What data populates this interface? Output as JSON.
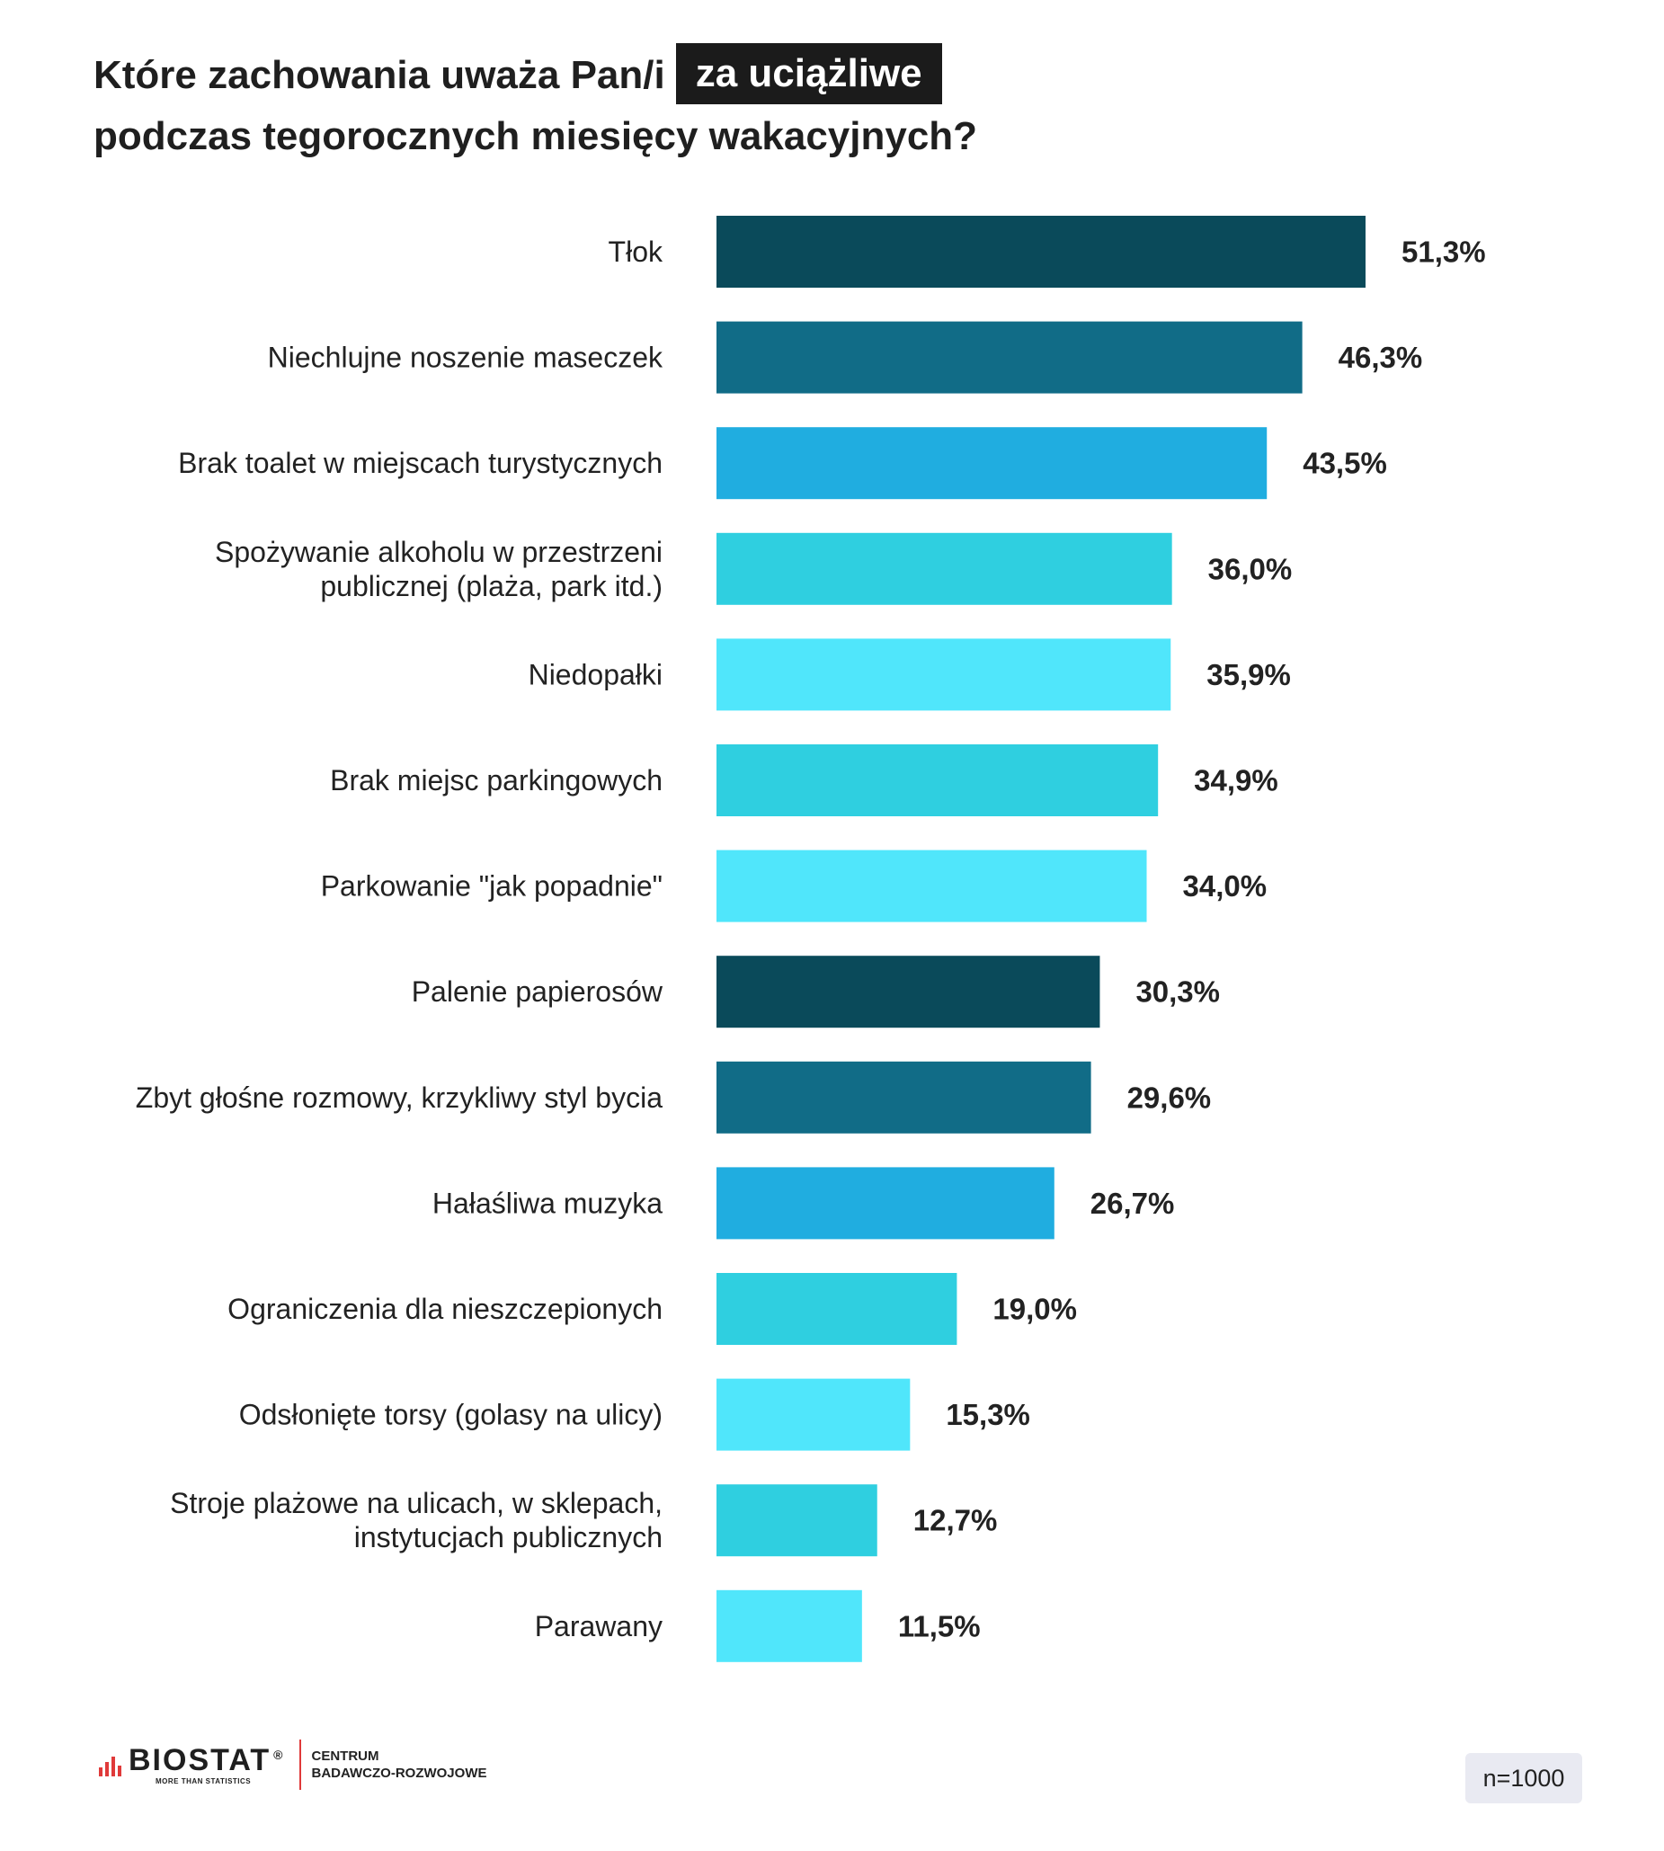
{
  "title": {
    "line1_prefix": "Które zachowania uważa Pan/i",
    "line1_highlight": "za uciążliwe",
    "line2": "podczas tegorocznych miesięcy wakacyjnych?"
  },
  "chart_data": {
    "type": "bar",
    "orientation": "horizontal",
    "title": "Które zachowania uważa Pan/i za uciążliwe podczas tegorocznych miesięcy wakacyjnych?",
    "categories": [
      [
        "Tłok"
      ],
      [
        "Niechlujne noszenie maseczek"
      ],
      [
        "Brak toalet w miejscach turystycznych"
      ],
      [
        "Spożywanie alkoholu w przestrzeni",
        "publicznej (plaża, park itd.)"
      ],
      [
        "Niedopałki"
      ],
      [
        "Brak miejsc parkingowych"
      ],
      [
        "Parkowanie \"jak popadnie\""
      ],
      [
        "Palenie papierosów"
      ],
      [
        "Zbyt głośne rozmowy, krzykliwy styl bycia"
      ],
      [
        "Hałaśliwa muzyka"
      ],
      [
        "Ograniczenia dla nieszczepionych"
      ],
      [
        "Odsłonięte torsy (golasy na ulicy)"
      ],
      [
        "Stroje plażowe na ulicach, w sklepach,",
        "instytucjach publicznych"
      ],
      [
        "Parawany"
      ]
    ],
    "values": [
      51.3,
      46.3,
      43.5,
      36.0,
      35.9,
      34.9,
      34.0,
      30.3,
      29.6,
      26.7,
      19.0,
      15.3,
      12.7,
      11.5
    ],
    "value_labels": [
      "51,3%",
      "46,3%",
      "43,5%",
      "36,0%",
      "35,9%",
      "34,9%",
      "34,0%",
      "30,3%",
      "29,6%",
      "26,7%",
      "19,0%",
      "15,3%",
      "12,7%",
      "11,5%"
    ],
    "colors": [
      "#0a4a5a",
      "#116c87",
      "#20ade0",
      "#2fcfe0",
      "#50e6fb",
      "#2fcfe0",
      "#50e6fb",
      "#0a4a5a",
      "#116c87",
      "#20ade0",
      "#2fcfe0",
      "#50e6fb",
      "#2fcfe0",
      "#50e6fb"
    ],
    "xlim": [
      0,
      51.3
    ],
    "grid": false,
    "legend": "none",
    "xlabel": "",
    "ylabel": ""
  },
  "footer": {
    "logo_text": "BIOSTAT",
    "logo_registered": "®",
    "logo_tagline": "MORE THAN STATISTICS",
    "logo_sub_line1": "CENTRUM",
    "logo_sub_line2": "BADAWCZO-ROZWOJOWE",
    "sample_size": "n=1000"
  }
}
